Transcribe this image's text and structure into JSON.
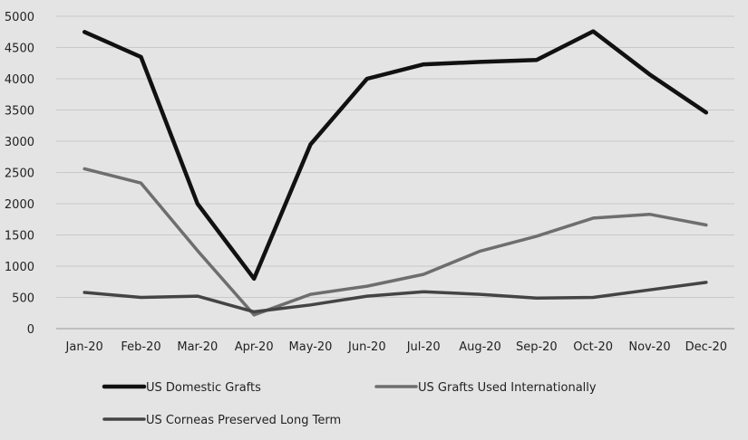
{
  "chart_data": {
    "type": "line",
    "categories": [
      "Jan-20",
      "Feb-20",
      "Mar-20",
      "Apr-20",
      "May-20",
      "Jun-20",
      "Jul-20",
      "Aug-20",
      "Sep-20",
      "Oct-20",
      "Nov-20",
      "Dec-20"
    ],
    "ylim": [
      0,
      5000
    ],
    "yticks": [
      "0",
      "500",
      "1000",
      "1500",
      "2000",
      "2500",
      "3000",
      "3500",
      "4000",
      "4500",
      "5000"
    ],
    "grid": true,
    "legend_position": "bottom",
    "series": [
      {
        "name": "US Domestic Grafts",
        "color": "#111111",
        "values": [
          4750,
          4350,
          2000,
          800,
          2950,
          4000,
          4230,
          4270,
          4300,
          4760,
          4070,
          3460
        ]
      },
      {
        "name": "US Grafts Used Internationally",
        "color": "#6e6e6e",
        "values": [
          2560,
          2330,
          1250,
          220,
          550,
          680,
          870,
          1240,
          1480,
          1770,
          1830,
          1660
        ]
      },
      {
        "name": "US Corneas Preserved Long Term",
        "color": "#444444",
        "values": [
          580,
          500,
          520,
          270,
          380,
          520,
          590,
          550,
          490,
          500,
          620,
          740
        ]
      }
    ]
  }
}
